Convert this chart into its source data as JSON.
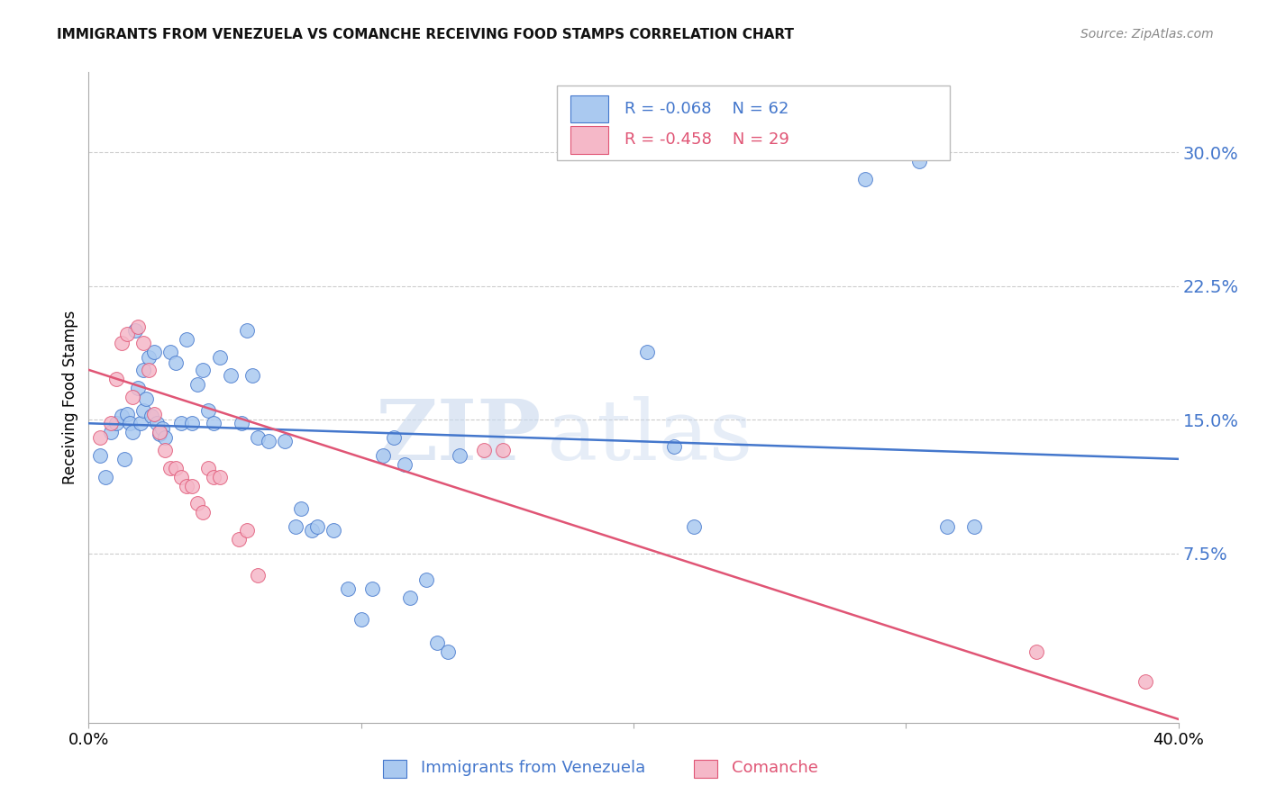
{
  "title": "IMMIGRANTS FROM VENEZUELA VS COMANCHE RECEIVING FOOD STAMPS CORRELATION CHART",
  "source": "Source: ZipAtlas.com",
  "ylabel": "Receiving Food Stamps",
  "ytick_labels": [
    "30.0%",
    "22.5%",
    "15.0%",
    "7.5%"
  ],
  "ytick_values": [
    0.3,
    0.225,
    0.15,
    0.075
  ],
  "xlim": [
    0.0,
    0.4
  ],
  "ylim": [
    -0.02,
    0.345
  ],
  "xtick_positions": [
    0.0,
    0.1,
    0.2,
    0.3,
    0.4
  ],
  "xtick_labels": [
    "0.0%",
    "",
    "",
    "",
    "40.0%"
  ],
  "legend_label1": "Immigrants from Venezuela",
  "legend_label2": "Comanche",
  "legend_r1": "R = -0.068",
  "legend_n1": "N = 62",
  "legend_r2": "R = -0.458",
  "legend_n2": "N = 29",
  "blue_fill": "#aac9f0",
  "pink_fill": "#f5b8c8",
  "line_blue": "#4477cc",
  "line_pink": "#e05575",
  "blue_scatter": [
    [
      0.004,
      0.13
    ],
    [
      0.006,
      0.118
    ],
    [
      0.008,
      0.143
    ],
    [
      0.01,
      0.148
    ],
    [
      0.012,
      0.152
    ],
    [
      0.013,
      0.128
    ],
    [
      0.014,
      0.153
    ],
    [
      0.015,
      0.148
    ],
    [
      0.016,
      0.143
    ],
    [
      0.017,
      0.2
    ],
    [
      0.018,
      0.168
    ],
    [
      0.019,
      0.148
    ],
    [
      0.02,
      0.178
    ],
    [
      0.02,
      0.155
    ],
    [
      0.021,
      0.162
    ],
    [
      0.022,
      0.185
    ],
    [
      0.023,
      0.152
    ],
    [
      0.024,
      0.188
    ],
    [
      0.025,
      0.148
    ],
    [
      0.026,
      0.142
    ],
    [
      0.027,
      0.145
    ],
    [
      0.028,
      0.14
    ],
    [
      0.03,
      0.188
    ],
    [
      0.032,
      0.182
    ],
    [
      0.034,
      0.148
    ],
    [
      0.036,
      0.195
    ],
    [
      0.038,
      0.148
    ],
    [
      0.04,
      0.17
    ],
    [
      0.042,
      0.178
    ],
    [
      0.044,
      0.155
    ],
    [
      0.046,
      0.148
    ],
    [
      0.048,
      0.185
    ],
    [
      0.052,
      0.175
    ],
    [
      0.056,
      0.148
    ],
    [
      0.058,
      0.2
    ],
    [
      0.06,
      0.175
    ],
    [
      0.062,
      0.14
    ],
    [
      0.066,
      0.138
    ],
    [
      0.072,
      0.138
    ],
    [
      0.076,
      0.09
    ],
    [
      0.078,
      0.1
    ],
    [
      0.082,
      0.088
    ],
    [
      0.084,
      0.09
    ],
    [
      0.09,
      0.088
    ],
    [
      0.095,
      0.055
    ],
    [
      0.1,
      0.038
    ],
    [
      0.104,
      0.055
    ],
    [
      0.108,
      0.13
    ],
    [
      0.112,
      0.14
    ],
    [
      0.116,
      0.125
    ],
    [
      0.118,
      0.05
    ],
    [
      0.124,
      0.06
    ],
    [
      0.128,
      0.025
    ],
    [
      0.132,
      0.02
    ],
    [
      0.136,
      0.13
    ],
    [
      0.205,
      0.188
    ],
    [
      0.215,
      0.135
    ],
    [
      0.222,
      0.09
    ],
    [
      0.285,
      0.285
    ],
    [
      0.305,
      0.295
    ],
    [
      0.315,
      0.09
    ],
    [
      0.325,
      0.09
    ]
  ],
  "pink_scatter": [
    [
      0.004,
      0.14
    ],
    [
      0.008,
      0.148
    ],
    [
      0.01,
      0.173
    ],
    [
      0.012,
      0.193
    ],
    [
      0.014,
      0.198
    ],
    [
      0.016,
      0.163
    ],
    [
      0.018,
      0.202
    ],
    [
      0.02,
      0.193
    ],
    [
      0.022,
      0.178
    ],
    [
      0.024,
      0.153
    ],
    [
      0.026,
      0.143
    ],
    [
      0.028,
      0.133
    ],
    [
      0.03,
      0.123
    ],
    [
      0.032,
      0.123
    ],
    [
      0.034,
      0.118
    ],
    [
      0.036,
      0.113
    ],
    [
      0.038,
      0.113
    ],
    [
      0.04,
      0.103
    ],
    [
      0.042,
      0.098
    ],
    [
      0.044,
      0.123
    ],
    [
      0.046,
      0.118
    ],
    [
      0.048,
      0.118
    ],
    [
      0.055,
      0.083
    ],
    [
      0.058,
      0.088
    ],
    [
      0.062,
      0.063
    ],
    [
      0.145,
      0.133
    ],
    [
      0.152,
      0.133
    ],
    [
      0.348,
      0.02
    ],
    [
      0.388,
      0.003
    ]
  ],
  "blue_line_x": [
    0.0,
    0.4
  ],
  "blue_line_y": [
    0.148,
    0.128
  ],
  "pink_line_x": [
    0.0,
    0.4
  ],
  "pink_line_y": [
    0.178,
    -0.018
  ],
  "watermark_zip": "ZIP",
  "watermark_atlas": "atlas",
  "background_color": "#ffffff",
  "grid_color": "#cccccc"
}
